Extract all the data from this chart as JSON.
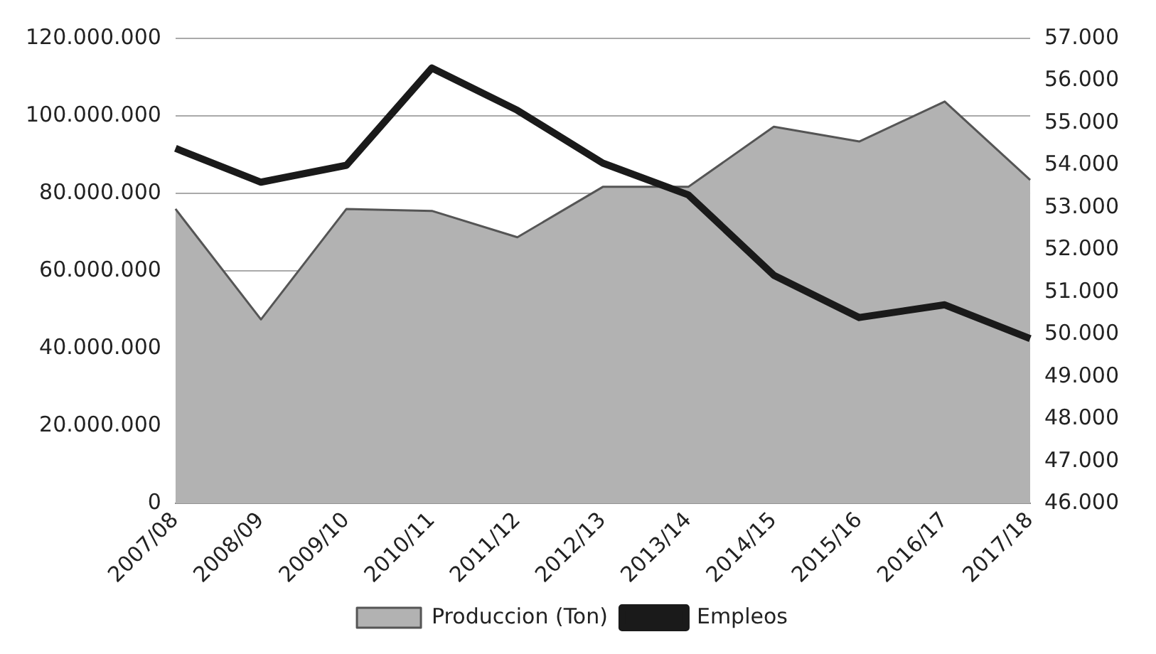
{
  "chart_data": {
    "type": "area",
    "categories": [
      "2007/08",
      "2008/09",
      "2009/10",
      "2010/11",
      "2011/12",
      "2012/13",
      "2013/14",
      "2014/15",
      "2015/16",
      "2016/17",
      "2017/18"
    ],
    "series": [
      {
        "name": "Produccion (Ton)",
        "color": "#b2b2b2",
        "values": [
          76000000,
          47500000,
          76000000,
          75500000,
          68700000,
          81700000,
          81700000,
          97200000,
          93400000,
          103700000,
          83500000
        ]
      },
      {
        "name": "Empleos",
        "type": "line",
        "axis": "y2",
        "color": "#1a1a1a",
        "values": [
          54400,
          53600,
          54000,
          56300,
          55300,
          54050,
          53300,
          51400,
          50400,
          50700,
          49900
        ]
      }
    ],
    "ylim": [
      0,
      120000000
    ],
    "yticks": [
      {
        "value": 0,
        "label": "0"
      },
      {
        "value": 20000000,
        "label": "20.000.000"
      },
      {
        "value": 40000000,
        "label": "40.000.000"
      },
      {
        "value": 60000000,
        "label": "60.000.000"
      },
      {
        "value": 80000000,
        "label": "80.000.000"
      },
      {
        "value": 100000000,
        "label": "100.000.000"
      },
      {
        "value": 120000000,
        "label": "120.000.000"
      }
    ],
    "y2lim": [
      46000,
      57000
    ],
    "y2ticks": [
      {
        "value": 46000,
        "label": "46.000"
      },
      {
        "value": 47000,
        "label": "47.000"
      },
      {
        "value": 48000,
        "label": "48.000"
      },
      {
        "value": 49000,
        "label": "49.000"
      },
      {
        "value": 50000,
        "label": "50.000"
      },
      {
        "value": 51000,
        "label": "51.000"
      },
      {
        "value": 52000,
        "label": "52.000"
      },
      {
        "value": 53000,
        "label": "53.000"
      },
      {
        "value": 54000,
        "label": "54.000"
      },
      {
        "value": 55000,
        "label": "55.000"
      },
      {
        "value": 56000,
        "label": "56.000"
      },
      {
        "value": 57000,
        "label": "57.000"
      }
    ],
    "grid": "y",
    "legend": "bottom",
    "marker": "none"
  }
}
